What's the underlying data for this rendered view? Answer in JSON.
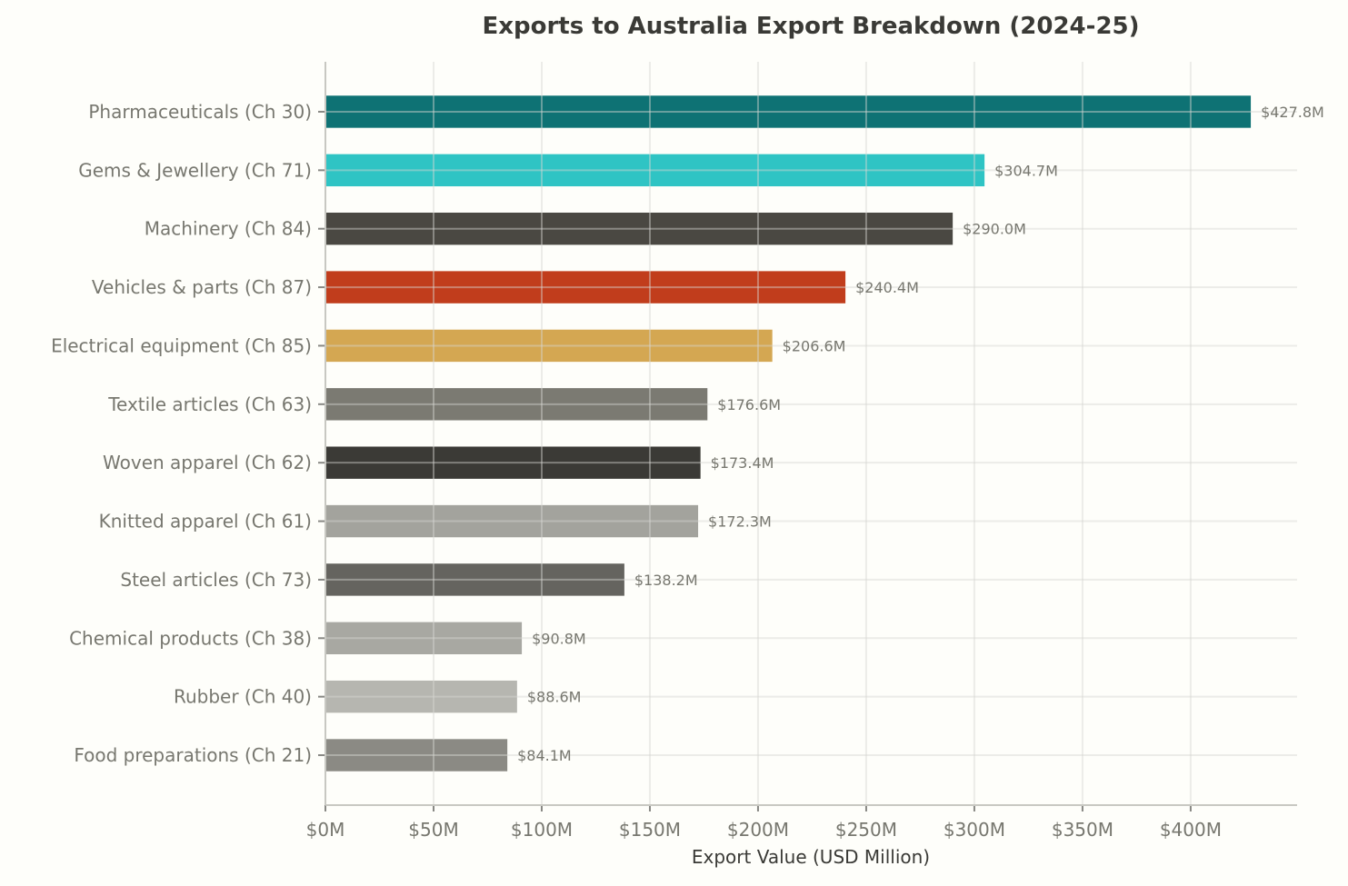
{
  "chart_data": {
    "type": "bar",
    "orientation": "horizontal",
    "title": "Exports to Australia Export Breakdown (2024-25)",
    "xlabel": "Export Value (USD Million)",
    "ylabel": "",
    "xlim": [
      0,
      449.2
    ],
    "xticks": [
      0,
      50,
      100,
      150,
      200,
      250,
      300,
      350,
      400
    ],
    "xtick_labels": [
      "$0M",
      "$50M",
      "$100M",
      "$150M",
      "$200M",
      "$250M",
      "$300M",
      "$350M",
      "$400M"
    ],
    "grid": true,
    "categories": [
      "Pharmaceuticals (Ch 30)",
      "Gems & Jewellery (Ch 71)",
      "Machinery (Ch 84)",
      "Vehicles & parts (Ch 87)",
      "Electrical equipment (Ch 85)",
      "Textile articles (Ch 63)",
      "Woven apparel (Ch 62)",
      "Knitted apparel (Ch 61)",
      "Steel articles (Ch 73)",
      "Chemical products (Ch 38)",
      "Rubber (Ch 40)",
      "Food preparations (Ch 21)"
    ],
    "values": [
      427.8,
      304.7,
      290.0,
      240.4,
      206.6,
      176.6,
      173.4,
      172.3,
      138.2,
      90.8,
      88.6,
      84.1
    ],
    "data_labels": [
      "$427.8M",
      "$304.7M",
      "$290.0M",
      "$240.4M",
      "$206.6M",
      "$176.6M",
      "$173.4M",
      "$172.3M",
      "$138.2M",
      "$90.8M",
      "$88.6M",
      "$84.1M"
    ],
    "colors": [
      "#0e7274",
      "#2fc4c4",
      "#4a4842",
      "#c13d1c",
      "#d4a752",
      "#7b7a72",
      "#3b3a36",
      "#a3a39d",
      "#65645f",
      "#a8a8a2",
      "#b6b6b0",
      "#8b8a84"
    ]
  }
}
